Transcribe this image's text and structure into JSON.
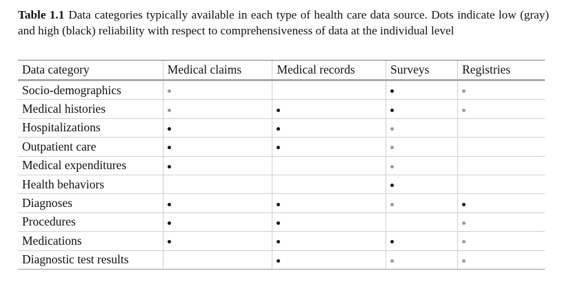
{
  "caption": {
    "label": "Table 1.1",
    "text": "Data categories typically available in each type of health care data source. Dots indicate low (gray) and high (black) reliability with respect to comprehensiveness of data at the individual level"
  },
  "colors": {
    "high": "#111111",
    "low": "#9a9a9a"
  },
  "table": {
    "headers": [
      "Data category",
      "Medical claims",
      "Medical records",
      "Surveys",
      "Registries"
    ],
    "rows": [
      {
        "category": "Socio-demographics",
        "cells": [
          "low",
          "",
          "high",
          "low"
        ]
      },
      {
        "category": "Medical histories",
        "cells": [
          "low",
          "high",
          "high",
          "low"
        ]
      },
      {
        "category": "Hospitalizations",
        "cells": [
          "high",
          "high",
          "low",
          ""
        ]
      },
      {
        "category": "Outpatient care",
        "cells": [
          "high",
          "high",
          "low",
          ""
        ]
      },
      {
        "category": "Medical expenditures",
        "cells": [
          "high",
          "",
          "low",
          ""
        ]
      },
      {
        "category": "Health behaviors",
        "cells": [
          "",
          "",
          "high",
          ""
        ]
      },
      {
        "category": "Diagnoses",
        "cells": [
          "high",
          "high",
          "low",
          "high"
        ]
      },
      {
        "category": "Procedures",
        "cells": [
          "high",
          "high",
          "",
          "low"
        ]
      },
      {
        "category": "Medications",
        "cells": [
          "high",
          "high",
          "high",
          "low"
        ]
      },
      {
        "category": "Diagnostic test results",
        "cells": [
          "",
          "high",
          "low",
          "low"
        ]
      }
    ]
  }
}
